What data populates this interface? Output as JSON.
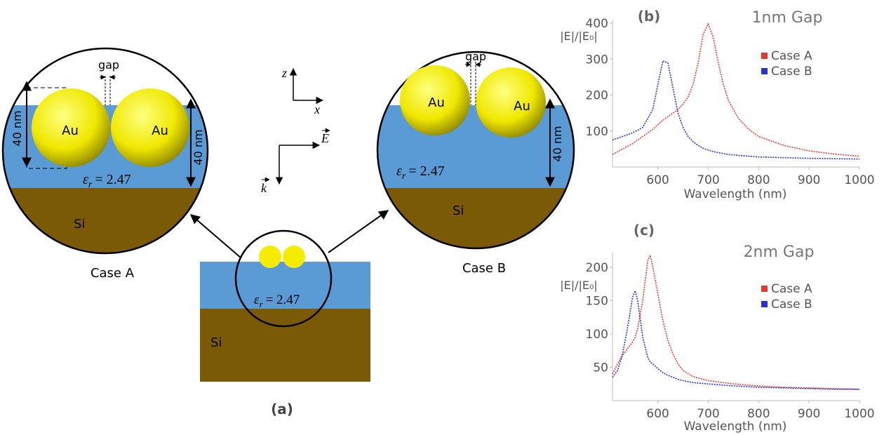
{
  "diagram": {
    "panel_label": "(a)",
    "case_a": {
      "title": "Case A",
      "gap": "gap",
      "particles": [
        "Au",
        "Au"
      ],
      "size_labels": [
        "40 nm",
        "40 nm"
      ],
      "permittivity": {
        "symbol": "ε",
        "subscript": "r",
        "value": "= 2.47"
      },
      "substrate": "Si"
    },
    "case_b": {
      "title": "Case B",
      "gap": "gap",
      "particles": [
        "Au",
        "Au"
      ],
      "size_labels": [
        "40 nm"
      ],
      "permittivity": {
        "symbol": "ε",
        "subscript": "r",
        "value": "= 2.47"
      },
      "substrate": "Si"
    },
    "substrate_view": {
      "permittivity": {
        "symbol": "ε",
        "subscript": "r",
        "value": "= 2.47"
      },
      "substrate": "Si"
    },
    "axes": {
      "z": "z",
      "x": "x",
      "field": "E",
      "wavevector": "k"
    }
  },
  "chart_data": [
    {
      "type": "line",
      "label": "(b)",
      "title": "1nm Gap",
      "ylabel": "|E|/|E₀|",
      "xlabel": "Wavelength (nm)",
      "x": [
        510,
        530,
        550,
        570,
        590,
        600,
        610,
        620,
        630,
        640,
        650,
        660,
        670,
        680,
        690,
        700,
        710,
        720,
        730,
        740,
        760,
        780,
        800,
        850,
        900,
        950,
        1000
      ],
      "series": [
        {
          "name": "Case A",
          "color": "#e8392f",
          "values": [
            35,
            50,
            65,
            85,
            105,
            118,
            130,
            140,
            150,
            160,
            175,
            195,
            230,
            290,
            370,
            398,
            360,
            290,
            230,
            185,
            135,
            105,
            85,
            60,
            45,
            36,
            30
          ]
        },
        {
          "name": "Case B",
          "color": "#2433d6",
          "values": [
            75,
            85,
            95,
            110,
            160,
            230,
            295,
            290,
            220,
            150,
            110,
            85,
            70,
            60,
            52,
            47,
            43,
            40,
            37,
            35,
            32,
            30,
            28,
            26,
            24,
            23,
            22
          ]
        }
      ],
      "xlim": [
        510,
        1000
      ],
      "xticks": [
        600,
        700,
        800,
        900,
        1000
      ],
      "ylim": [
        0,
        410
      ],
      "yticks": [
        100,
        200,
        300,
        400
      ],
      "legend": "upper right"
    },
    {
      "type": "line",
      "label": "(c)",
      "title": "2nm Gap",
      "ylabel": "|E|/|E₀|",
      "xlabel": "Wavelength (nm)",
      "x": [
        510,
        520,
        530,
        540,
        550,
        555,
        560,
        570,
        580,
        585,
        590,
        600,
        610,
        620,
        630,
        640,
        650,
        670,
        700,
        750,
        800,
        850,
        900,
        950,
        1000
      ],
      "series": [
        {
          "name": "Case A",
          "color": "#e8392f",
          "values": [
            40,
            55,
            68,
            78,
            88,
            95,
            108,
            150,
            210,
            218,
            200,
            160,
            120,
            90,
            70,
            55,
            45,
            36,
            30,
            25,
            22,
            20,
            19,
            18,
            17
          ]
        },
        {
          "name": "Case B",
          "color": "#2433d6",
          "values": [
            35,
            45,
            70,
            110,
            155,
            165,
            150,
            95,
            65,
            58,
            55,
            48,
            42,
            38,
            35,
            32,
            30,
            27,
            25,
            22,
            20,
            19,
            18,
            17,
            17
          ]
        }
      ],
      "xlim": [
        510,
        1000
      ],
      "xticks": [
        600,
        700,
        800,
        900,
        1000
      ],
      "ylim": [
        0,
        222
      ],
      "yticks": [
        50,
        100,
        150,
        200
      ],
      "legend": "upper right"
    }
  ]
}
